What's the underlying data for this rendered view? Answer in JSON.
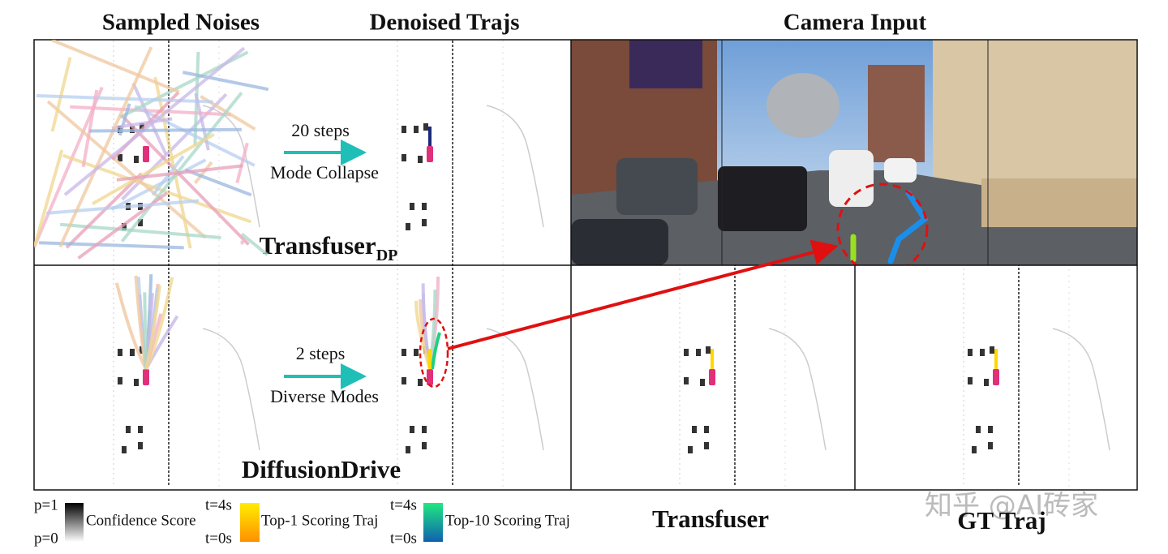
{
  "headers": {
    "sampled_noises": "Sampled Noises",
    "denoised_trajs": "Denoised Trajs",
    "camera_input": "Camera Input"
  },
  "rows": [
    {
      "steps": "20 steps",
      "note": "Mode Collapse",
      "method": "Transfuser",
      "method_sub": "DP"
    },
    {
      "steps": "2 steps",
      "note": "Diverse Modes",
      "method": "DiffusionDrive"
    }
  ],
  "legend": {
    "confidence": {
      "high": "p=1",
      "low": "p=0",
      "label": "Confidence Score"
    },
    "top1": {
      "start": "t=4s",
      "end": "t=0s",
      "label": "Top-1 Scoring Traj"
    },
    "top10": {
      "start": "t=4s",
      "end": "t=0s",
      "label": "Top-10 Scoring Traj"
    }
  },
  "bottom_labels": {
    "transfuser": "Transfuser",
    "gt_traj": "GT Traj"
  },
  "watermark": "知乎 @AI砖家"
}
